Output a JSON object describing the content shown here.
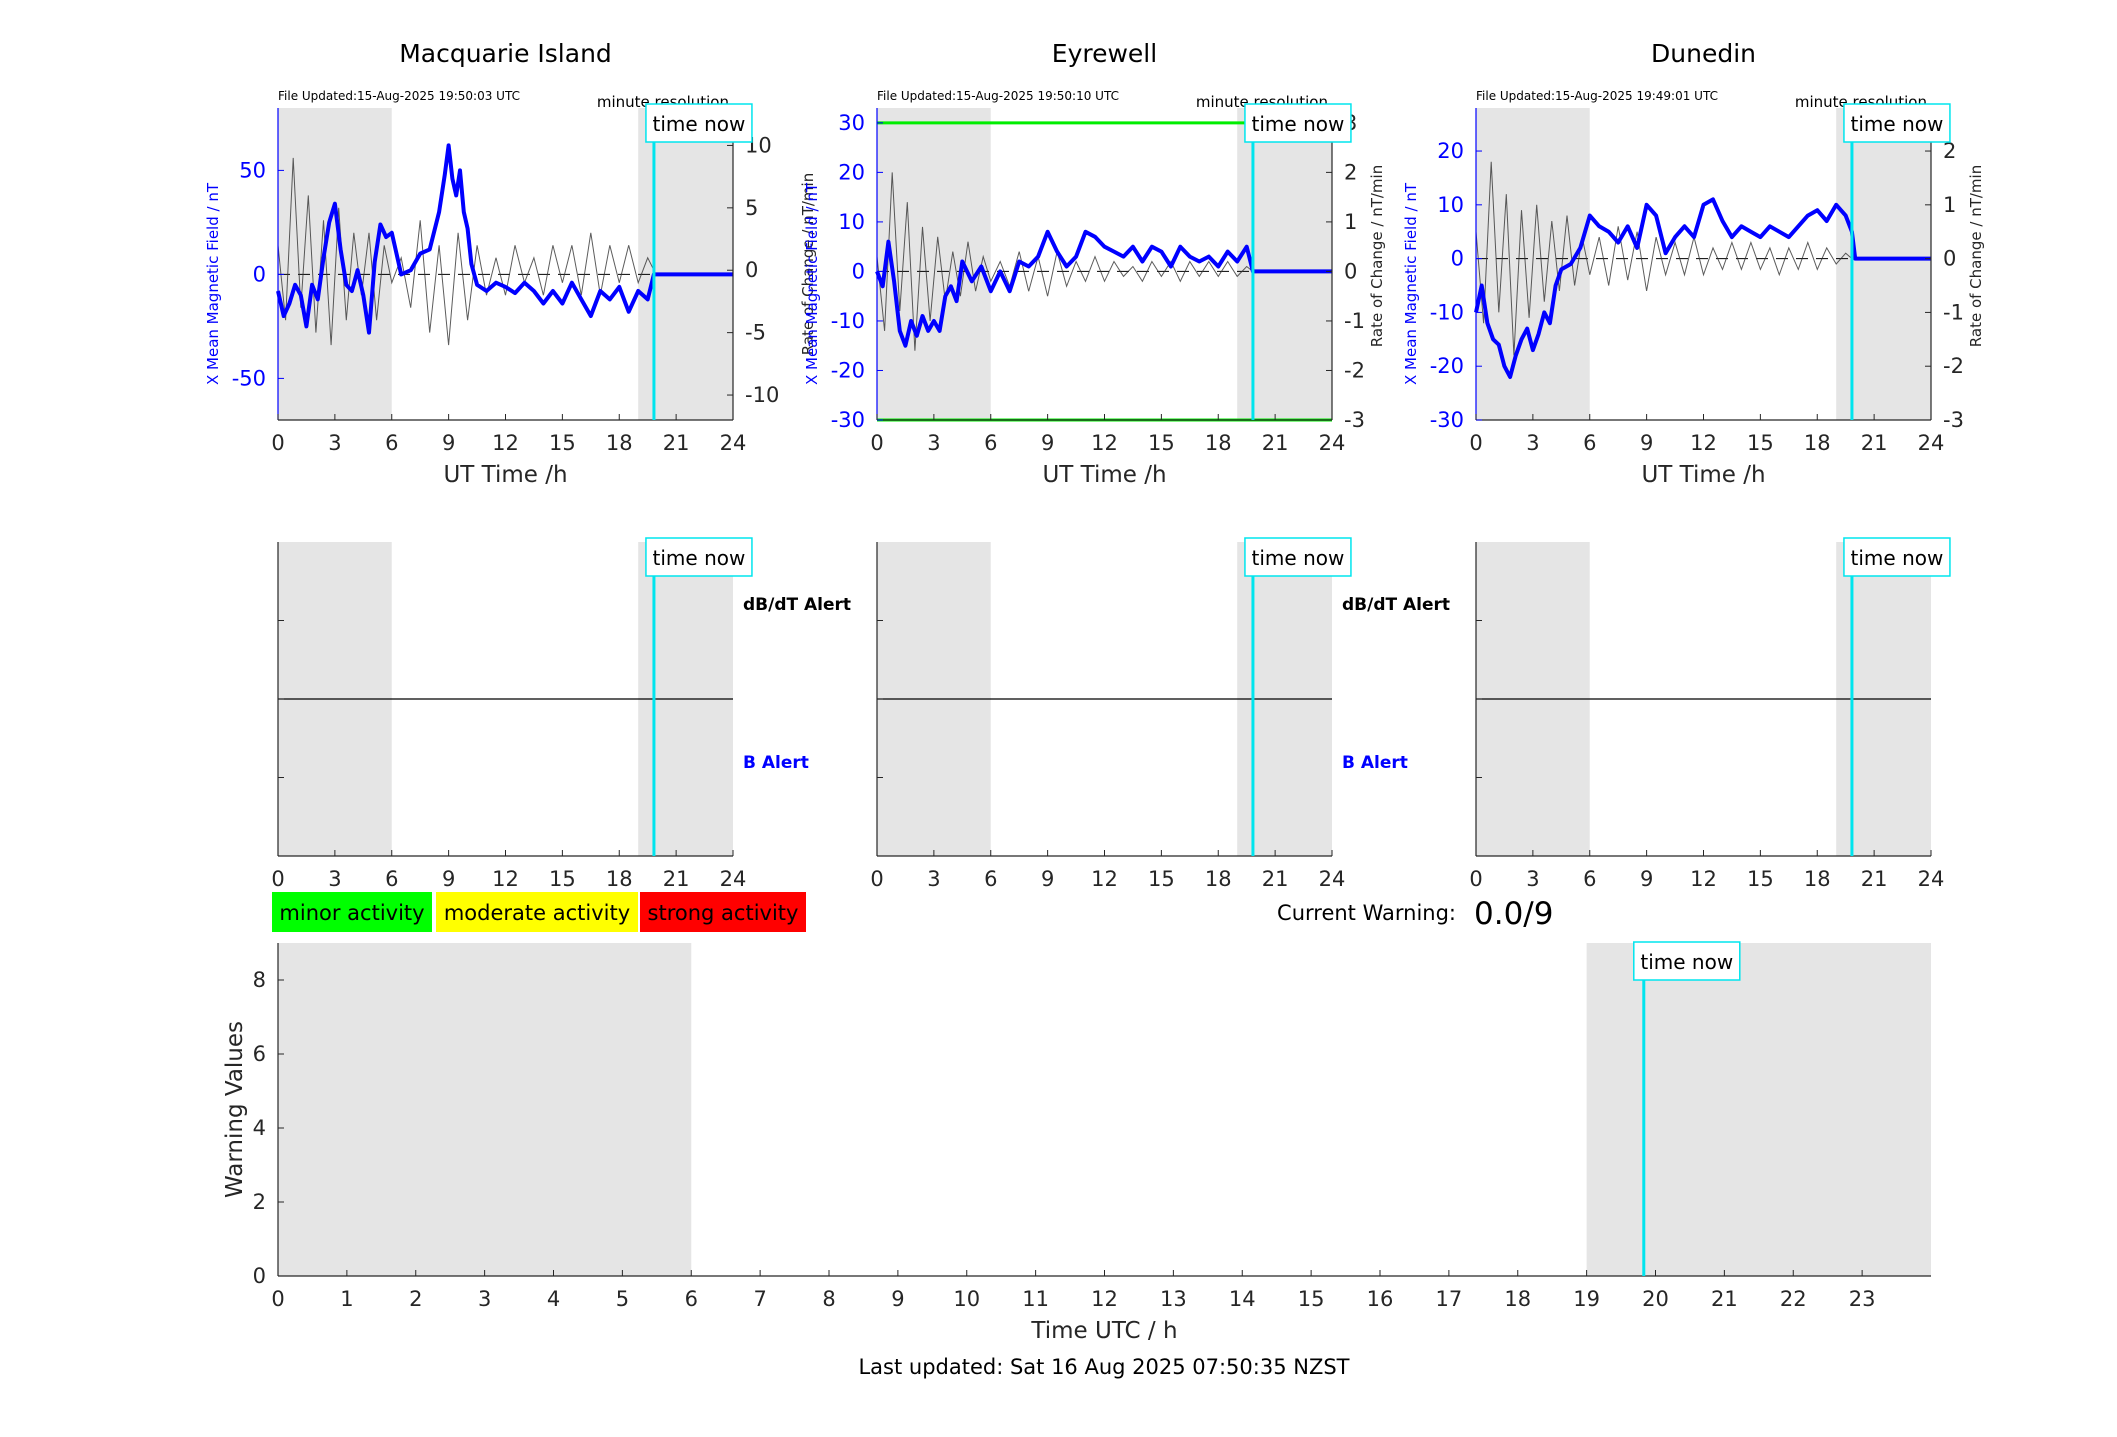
{
  "resolution_note": "minute resolution",
  "file_updated_prefix": "File Updated:",
  "time_now_label": "time now",
  "top_xlabel": "UT Time /h",
  "top_ylabel_left": "X Mean Magnetic Field / nT",
  "top_ylabel_right": "Rate of Change / nT/min",
  "alert_labels": {
    "dbdt": "dB/dT Alert",
    "b": "B Alert"
  },
  "legend": [
    {
      "label": "minor activity",
      "color": "#00ff00"
    },
    {
      "label": "moderate activity",
      "color": "#ffff00"
    },
    {
      "label": "strong activity",
      "color": "#ff0000"
    }
  ],
  "current_warning": {
    "label": "Current Warning:",
    "value": "0.0/9"
  },
  "bottom": {
    "xlabel": "Time UTC / h",
    "ylabel": "Warning Values"
  },
  "footer": "Last updated: Sat 16 Aug 2025 07:50:35 NZST",
  "colors": {
    "field": "#0000ff",
    "rate": "#333333",
    "time_now": "#00e5ee",
    "threshold": "#00ee00",
    "night_shade": "#e5e5e5"
  },
  "chart_data": [
    {
      "type": "line",
      "title": "Macquarie Island",
      "file_updated": "15-Aug-2025 19:50:03 UTC",
      "xlim": [
        0,
        24
      ],
      "x_ticks": [
        0,
        3,
        6,
        9,
        12,
        15,
        18,
        21,
        24
      ],
      "ylim_left": [
        -70,
        80
      ],
      "y_ticks_left": [
        -50,
        0,
        50
      ],
      "ylim_right": [
        -12,
        13
      ],
      "y_ticks_right": [
        -10,
        -5,
        0,
        5,
        10
      ],
      "shaded_intervals": [
        [
          0,
          6
        ],
        [
          19.0,
          24
        ]
      ],
      "time_now": 19.83,
      "thresholds": [],
      "series": [
        {
          "axis": "left",
          "x": [
            0,
            0.3,
            0.6,
            0.9,
            1.2,
            1.5,
            1.8,
            2.1,
            2.4,
            2.7,
            3.0,
            3.3,
            3.6,
            3.9,
            4.2,
            4.5,
            4.8,
            5.1,
            5.4,
            5.7,
            6.0,
            6.5,
            7.0,
            7.5,
            8.0,
            8.5,
            8.8,
            9.0,
            9.2,
            9.4,
            9.6,
            9.8,
            10.0,
            10.2,
            10.5,
            11.0,
            11.5,
            12.0,
            12.5,
            13.0,
            13.5,
            14.0,
            14.5,
            15.0,
            15.5,
            16.0,
            16.5,
            17.0,
            17.5,
            18.0,
            18.5,
            19.0,
            19.5,
            19.83,
            20.0,
            24.0
          ],
          "y": [
            -8,
            -20,
            -14,
            -5,
            -10,
            -25,
            -5,
            -12,
            8,
            25,
            34,
            12,
            -5,
            -8,
            2,
            -10,
            -28,
            6,
            24,
            18,
            20,
            0,
            2,
            10,
            12,
            30,
            48,
            62,
            46,
            38,
            50,
            30,
            22,
            5,
            -5,
            -8,
            -4,
            -6,
            -9,
            -4,
            -8,
            -14,
            -8,
            -14,
            -4,
            -12,
            -20,
            -8,
            -12,
            -6,
            -18,
            -8,
            -12,
            0,
            0,
            0
          ]
        },
        {
          "axis": "right",
          "x": [
            0,
            0.4,
            0.8,
            1.2,
            1.6,
            2.0,
            2.4,
            2.8,
            3.2,
            3.6,
            4.0,
            4.4,
            4.8,
            5.2,
            5.6,
            6.0,
            6.5,
            7.0,
            7.5,
            8.0,
            8.5,
            9.0,
            9.5,
            10.0,
            10.5,
            11.0,
            11.5,
            12.0,
            12.5,
            13.0,
            13.5,
            14.0,
            14.5,
            15.0,
            15.5,
            16.0,
            16.5,
            17.0,
            17.5,
            18.0,
            18.5,
            19.0,
            19.5,
            19.83
          ],
          "y": [
            2,
            -4,
            9,
            -3,
            6,
            -5,
            4,
            -6,
            5,
            -4,
            3,
            -2,
            3,
            -4,
            2,
            -1,
            1,
            -3,
            4,
            -5,
            2,
            -6,
            3,
            -4,
            2,
            -2,
            1,
            -2,
            2,
            -1,
            1,
            -2,
            2,
            -1,
            2,
            -2,
            3,
            -2,
            2,
            -1,
            2,
            -1,
            1,
            0
          ]
        }
      ]
    },
    {
      "type": "line",
      "title": "Eyrewell",
      "file_updated": "15-Aug-2025 19:50:10 UTC",
      "xlim": [
        0,
        24
      ],
      "x_ticks": [
        0,
        3,
        6,
        9,
        12,
        15,
        18,
        21,
        24
      ],
      "ylim_left": [
        -30,
        33
      ],
      "y_ticks_left": [
        -30,
        -20,
        -10,
        0,
        10,
        20,
        30
      ],
      "ylim_right": [
        -3,
        3.3
      ],
      "y_ticks_right": [
        -3,
        -2,
        -1,
        0,
        1,
        2,
        3
      ],
      "shaded_intervals": [
        [
          0,
          6
        ],
        [
          19.0,
          24
        ]
      ],
      "time_now": 19.83,
      "thresholds": [
        30,
        -30
      ],
      "series": [
        {
          "axis": "left",
          "x": [
            0,
            0.3,
            0.6,
            0.9,
            1.2,
            1.5,
            1.8,
            2.1,
            2.4,
            2.7,
            3.0,
            3.3,
            3.6,
            3.9,
            4.2,
            4.5,
            5.0,
            5.5,
            6.0,
            6.5,
            7.0,
            7.5,
            8.0,
            8.5,
            9.0,
            9.5,
            10.0,
            10.5,
            11.0,
            11.5,
            12.0,
            12.5,
            13.0,
            13.5,
            14.0,
            14.5,
            15.0,
            15.5,
            16.0,
            16.5,
            17.0,
            17.5,
            18.0,
            18.5,
            19.0,
            19.5,
            19.83,
            20.0,
            24.0
          ],
          "y": [
            0,
            -3,
            6,
            -2,
            -12,
            -15,
            -10,
            -13,
            -9,
            -12,
            -10,
            -12,
            -5,
            -3,
            -6,
            2,
            -2,
            1,
            -4,
            0,
            -4,
            2,
            1,
            3,
            8,
            4,
            1,
            3,
            8,
            7,
            5,
            4,
            3,
            5,
            2,
            5,
            4,
            1,
            5,
            3,
            2,
            3,
            1,
            4,
            2,
            5,
            0,
            0,
            0
          ]
        },
        {
          "axis": "right",
          "x": [
            0,
            0.4,
            0.8,
            1.2,
            1.6,
            2.0,
            2.4,
            2.8,
            3.2,
            3.6,
            4.0,
            4.4,
            4.8,
            5.2,
            5.6,
            6.0,
            6.5,
            7.0,
            7.5,
            8.0,
            8.5,
            9.0,
            9.5,
            10.0,
            10.5,
            11.0,
            11.5,
            12.0,
            12.5,
            13.0,
            13.5,
            14.0,
            14.5,
            15.0,
            15.5,
            16.0,
            16.5,
            17.0,
            17.5,
            18.0,
            18.5,
            19.0,
            19.5,
            19.83
          ],
          "y": [
            0.3,
            -1.2,
            2.0,
            -0.8,
            1.4,
            -1.6,
            0.9,
            -1.0,
            0.7,
            -0.6,
            0.4,
            -0.5,
            0.6,
            -0.4,
            0.3,
            -0.2,
            0.2,
            -0.3,
            0.4,
            -0.4,
            0.3,
            -0.5,
            0.4,
            -0.3,
            0.2,
            -0.2,
            0.3,
            -0.2,
            0.2,
            -0.1,
            0.1,
            -0.2,
            0.2,
            -0.1,
            0.2,
            -0.2,
            0.2,
            -0.1,
            0.2,
            -0.1,
            0.2,
            -0.1,
            0.1,
            0
          ]
        }
      ]
    },
    {
      "type": "line",
      "title": "Dunedin",
      "file_updated": "15-Aug-2025 19:49:01 UTC",
      "xlim": [
        0,
        24
      ],
      "x_ticks": [
        0,
        3,
        6,
        9,
        12,
        15,
        18,
        21,
        24
      ],
      "ylim_left": [
        -30,
        28
      ],
      "y_ticks_left": [
        -30,
        -20,
        -10,
        0,
        10,
        20
      ],
      "ylim_right": [
        -3,
        2.8
      ],
      "y_ticks_right": [
        -3,
        -2,
        -1,
        0,
        1,
        2
      ],
      "shaded_intervals": [
        [
          0,
          6
        ],
        [
          19.0,
          24
        ]
      ],
      "time_now": 19.83,
      "thresholds": [],
      "series": [
        {
          "axis": "left",
          "x": [
            0,
            0.3,
            0.6,
            0.9,
            1.2,
            1.5,
            1.8,
            2.1,
            2.4,
            2.7,
            3.0,
            3.3,
            3.6,
            3.9,
            4.2,
            4.5,
            5.0,
            5.5,
            6.0,
            6.5,
            7.0,
            7.5,
            8.0,
            8.5,
            9.0,
            9.5,
            10.0,
            10.5,
            11.0,
            11.5,
            12.0,
            12.5,
            13.0,
            13.5,
            14.0,
            14.5,
            15.0,
            15.5,
            16.0,
            16.5,
            17.0,
            17.5,
            18.0,
            18.5,
            19.0,
            19.5,
            19.83,
            20.0,
            24.0
          ],
          "y": [
            -10,
            -5,
            -12,
            -15,
            -16,
            -20,
            -22,
            -18,
            -15,
            -13,
            -17,
            -14,
            -10,
            -12,
            -5,
            -2,
            -1,
            2,
            8,
            6,
            5,
            3,
            6,
            2,
            10,
            8,
            1,
            4,
            6,
            4,
            10,
            11,
            7,
            4,
            6,
            5,
            4,
            6,
            5,
            4,
            6,
            8,
            9,
            7,
            10,
            8,
            5,
            0,
            0
          ]
        },
        {
          "axis": "right",
          "x": [
            0,
            0.4,
            0.8,
            1.2,
            1.6,
            2.0,
            2.4,
            2.8,
            3.2,
            3.6,
            4.0,
            4.4,
            4.8,
            5.2,
            5.6,
            6.0,
            6.5,
            7.0,
            7.5,
            8.0,
            8.5,
            9.0,
            9.5,
            10.0,
            10.5,
            11.0,
            11.5,
            12.0,
            12.5,
            13.0,
            13.5,
            14.0,
            14.5,
            15.0,
            15.5,
            16.0,
            16.5,
            17.0,
            17.5,
            18.0,
            18.5,
            19.0,
            19.5,
            19.83
          ],
          "y": [
            0.5,
            -1.2,
            1.8,
            -1.0,
            1.2,
            -1.8,
            0.9,
            -1.1,
            1.0,
            -0.8,
            0.7,
            -0.6,
            0.8,
            -0.5,
            0.4,
            -0.3,
            0.4,
            -0.5,
            0.6,
            -0.4,
            0.5,
            -0.6,
            0.4,
            -0.3,
            0.3,
            -0.3,
            0.4,
            -0.3,
            0.2,
            -0.2,
            0.3,
            -0.2,
            0.3,
            -0.2,
            0.2,
            -0.3,
            0.2,
            -0.2,
            0.3,
            -0.2,
            0.2,
            -0.1,
            0.1,
            0
          ]
        }
      ]
    },
    {
      "type": "line",
      "title": "",
      "panel": "alert",
      "station": "Macquarie Island",
      "xlim": [
        0,
        24
      ],
      "x_ticks": [
        0,
        3,
        6,
        9,
        12,
        15,
        18,
        21,
        24
      ],
      "shaded_intervals": [
        [
          0,
          6
        ],
        [
          19.0,
          24
        ]
      ],
      "time_now": 19.83
    },
    {
      "type": "line",
      "title": "",
      "panel": "alert",
      "station": "Eyrewell",
      "xlim": [
        0,
        24
      ],
      "x_ticks": [
        0,
        3,
        6,
        9,
        12,
        15,
        18,
        21,
        24
      ],
      "shaded_intervals": [
        [
          0,
          6
        ],
        [
          19.0,
          24
        ]
      ],
      "time_now": 19.83
    },
    {
      "type": "line",
      "title": "",
      "panel": "alert",
      "station": "Dunedin",
      "xlim": [
        0,
        24
      ],
      "x_ticks": [
        0,
        3,
        6,
        9,
        12,
        15,
        18,
        21,
        24
      ],
      "shaded_intervals": [
        [
          0,
          6
        ],
        [
          19.0,
          24
        ]
      ],
      "time_now": 19.83
    },
    {
      "type": "line",
      "title": "",
      "panel": "warning",
      "xlabel": "Time UTC / h",
      "ylabel": "Warning Values",
      "xlim": [
        0,
        24
      ],
      "x_ticks": [
        0,
        1,
        2,
        3,
        4,
        5,
        6,
        7,
        8,
        9,
        10,
        11,
        12,
        13,
        14,
        15,
        16,
        17,
        18,
        19,
        20,
        21,
        22,
        23
      ],
      "ylim": [
        0,
        9
      ],
      "y_ticks": [
        0,
        2,
        4,
        6,
        8
      ],
      "shaded_intervals": [
        [
          0,
          6
        ],
        [
          19.0,
          24
        ]
      ],
      "time_now": 19.83
    }
  ]
}
